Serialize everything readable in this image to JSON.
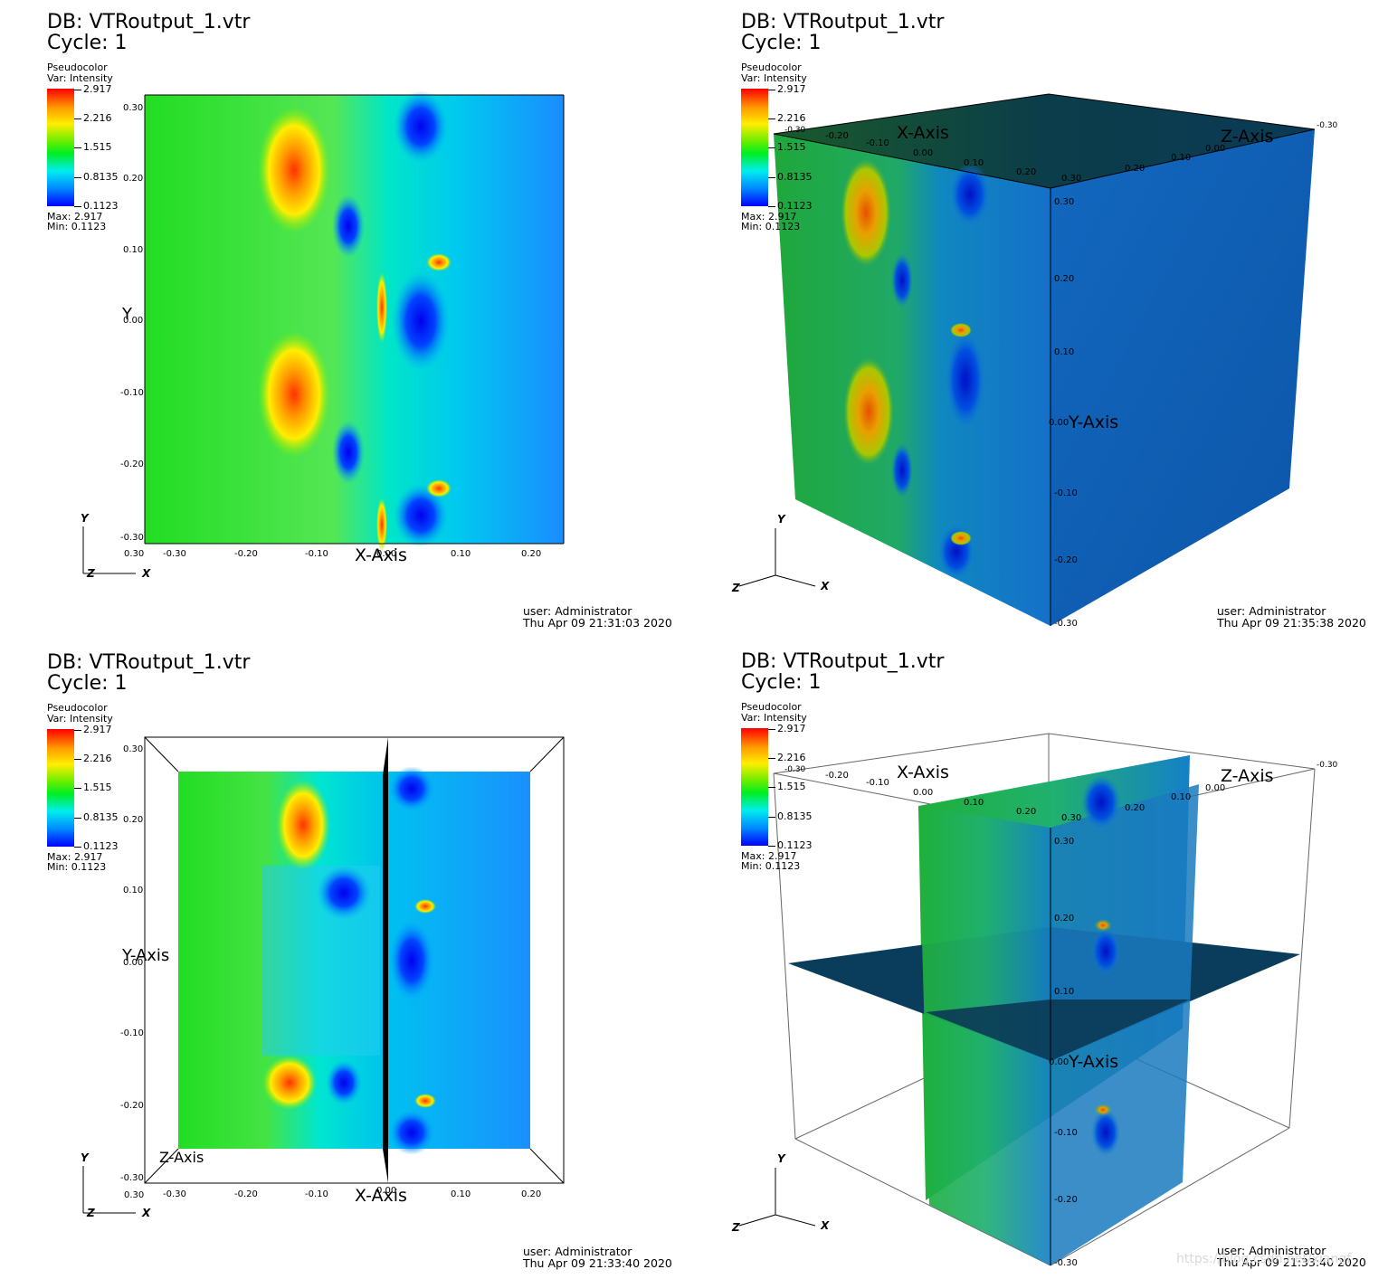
{
  "windows": [
    {
      "id": "top-left",
      "db_title": "DB: VTRoutput_1.vtr",
      "cycle": "Cycle: 1",
      "legend": {
        "plot_type": "Pseudocolor",
        "variable": "Var: Intensity",
        "ticks": [
          "2.917",
          "2.216",
          "1.515",
          "0.8135",
          "0.1123"
        ],
        "max": "Max: 2.917",
        "min": "Min: 0.1123"
      },
      "axes": {
        "y_label": "Y",
        "y_ticks": [
          "0.30",
          "0.20",
          "0.10",
          "0.00",
          "-0.10",
          "-0.20",
          "-0.30"
        ],
        "x_label": "X-Axis",
        "x_ticks": [
          "0.30",
          "-0.30",
          "-0.20",
          "-0.10",
          "0.00",
          "0.10",
          "0.20"
        ]
      },
      "triad": {
        "y": "Y",
        "z": "Z",
        "x": "X"
      },
      "user": "user: Administrator",
      "timestamp": "Thu Apr 09 21:31:03 2020"
    },
    {
      "id": "top-right",
      "db_title": "DB: VTRoutput_1.vtr",
      "cycle": "Cycle: 1",
      "legend": {
        "plot_type": "Pseudocolor",
        "variable": "Var: Intensity",
        "ticks": [
          "2.917",
          "2.216",
          "1.515",
          "0.8135",
          "0.1123"
        ],
        "max": "Max: 2.917",
        "min": "Min: 0.1123"
      },
      "axes": {
        "x_label": "X-Axis",
        "x_ticks": [
          "-0.30",
          "-0.20",
          "-0.10",
          "0.00",
          "0.10",
          "0.20",
          "0.30"
        ],
        "z_label": "Z-Axis",
        "z_ticks": [
          "-0.30",
          "0.20",
          "0.10",
          "0.00"
        ],
        "y_label": "Y-Axis",
        "y_ticks": [
          "0.30",
          "0.20",
          "0.10",
          "0.00",
          "-0.10",
          "-0.20",
          "-0.30"
        ]
      },
      "triad": {
        "y": "Y",
        "z": "Z",
        "x": "X"
      },
      "user": "user: Administrator",
      "timestamp": "Thu Apr 09 21:35:38 2020"
    },
    {
      "id": "bottom-left",
      "db_title": "DB: VTRoutput_1.vtr",
      "cycle": "Cycle: 1",
      "legend": {
        "plot_type": "Pseudocolor",
        "variable": "Var: Intensity",
        "ticks": [
          "2.917",
          "2.216",
          "1.515",
          "0.8135",
          "0.1123"
        ],
        "max": "Max: 2.917",
        "min": "Min: 0.1123"
      },
      "axes": {
        "y_label": "Y-Axis",
        "y_ticks": [
          "0.30",
          "0.20",
          "0.10",
          "0.00",
          "-0.10",
          "-0.20",
          "-0.30"
        ],
        "x_label": "X-Axis",
        "x_ticks": [
          "0.30",
          "-0.30",
          "-0.20",
          "-0.10",
          "0.00",
          "0.10",
          "0.20"
        ],
        "z_label": "Z-Axis"
      },
      "triad": {
        "y": "Y",
        "z": "Z",
        "x": "X"
      },
      "user": "user: Administrator",
      "timestamp": "Thu Apr 09 21:33:40 2020"
    },
    {
      "id": "bottom-right",
      "db_title": "DB: VTRoutput_1.vtr",
      "cycle": "Cycle: 1",
      "legend": {
        "plot_type": "Pseudocolor",
        "variable": "Var: Intensity",
        "ticks": [
          "2.917",
          "2.216",
          "1.515",
          "0.8135",
          "0.1123"
        ],
        "max": "Max: 2.917",
        "min": "Min: 0.1123"
      },
      "axes": {
        "x_label": "X-Axis",
        "x_ticks": [
          "-0.30",
          "-0.20",
          "-0.10",
          "0.00",
          "0.10",
          "0.20",
          "0.30"
        ],
        "z_label": "Z-Axis",
        "z_ticks": [
          "-0.30",
          "0.20",
          "0.10",
          "0.00"
        ],
        "y_label": "Y-Axis",
        "y_ticks": [
          "0.30",
          "0.20",
          "0.10",
          "0.00",
          "-0.10",
          "-0.20",
          "-0.30"
        ]
      },
      "triad": {
        "y": "Y",
        "z": "Z",
        "x": "X"
      },
      "user": "user: Administrator",
      "timestamp": "Thu Apr 09 21:33:40 2020"
    }
  ],
  "watermark": "https://blog.csdn.net/xiangf",
  "colors": {
    "field_green": "#22dd22",
    "field_cyan": "#00e6e6",
    "field_blue": "#1a8cff",
    "field_red": "#ff3300",
    "field_yellow": "#ffcc00",
    "cube_blue": "#0f5fb0",
    "cube_top": "#0b3a55",
    "slice_dark": "#0a3d5c"
  },
  "icons": [
    "axis-triad-icon",
    "colorbar-legend-icon"
  ]
}
